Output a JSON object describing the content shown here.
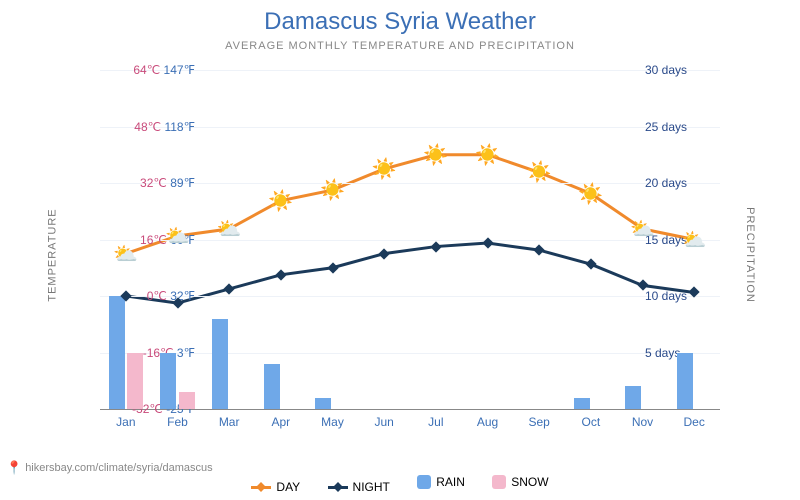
{
  "title": "Damascus Syria Weather",
  "subtitle": "AVERAGE MONTHLY TEMPERATURE AND PRECIPITATION",
  "credit_url": "hikersbay.com/climate/syria/damascus",
  "axes": {
    "left_label": "TEMPERATURE",
    "right_label": "PRECIPITATION",
    "temp_min_c": -32,
    "temp_max_c": 64,
    "precip_min": 0,
    "precip_max": 30,
    "left_ticks": [
      {
        "c": "64℃",
        "f": "147℉",
        "v": 64
      },
      {
        "c": "48℃",
        "f": "118℉",
        "v": 48
      },
      {
        "c": "32℃",
        "f": "89℉",
        "v": 32
      },
      {
        "c": "16℃",
        "f": "60℉",
        "v": 16
      },
      {
        "c": "0℃",
        "f": "32℉",
        "v": 0
      },
      {
        "c": "-16℃",
        "f": "3℉",
        "v": -16
      },
      {
        "c": "-32℃",
        "f": "-25℉",
        "v": -32
      }
    ],
    "right_ticks": [
      {
        "label": "30 days",
        "v": 30
      },
      {
        "label": "25 days",
        "v": 25
      },
      {
        "label": "20 days",
        "v": 20
      },
      {
        "label": "15 days",
        "v": 15
      },
      {
        "label": "10 days",
        "v": 10
      },
      {
        "label": "5 days",
        "v": 5
      }
    ]
  },
  "months": [
    "Jan",
    "Feb",
    "Mar",
    "Apr",
    "May",
    "Jun",
    "Jul",
    "Aug",
    "Sep",
    "Oct",
    "Nov",
    "Dec"
  ],
  "series": {
    "day": {
      "color": "#f08a2c",
      "values": [
        12,
        17,
        19,
        27,
        30,
        36,
        40,
        40,
        35,
        29,
        19,
        16
      ],
      "markers": [
        "cloud",
        "cloud",
        "cloud",
        "sun",
        "sun",
        "sun",
        "sun",
        "sun",
        "sun",
        "sun",
        "cloud",
        "cloud"
      ]
    },
    "night": {
      "color": "#1b3a5a",
      "values": [
        0,
        -2,
        2,
        6,
        8,
        12,
        14,
        15,
        13,
        9,
        3,
        1
      ]
    },
    "rain": {
      "color": "#6fa8e8",
      "values": [
        10,
        5,
        8,
        4,
        1,
        0,
        0,
        0,
        0,
        1,
        2,
        5
      ]
    },
    "snow": {
      "color": "#f4b8cc",
      "values": [
        5,
        1.5,
        0,
        0,
        0,
        0,
        0,
        0,
        0,
        0,
        0,
        0
      ]
    }
  },
  "legend": {
    "day": "DAY",
    "night": "NIGHT",
    "rain": "RAIN",
    "snow": "SNOW"
  },
  "style": {
    "bar_width_pct": 2.6,
    "line_width": 3,
    "grid_color": "#eef2f8",
    "bg": "#ffffff",
    "title_color": "#3b6fb5"
  }
}
